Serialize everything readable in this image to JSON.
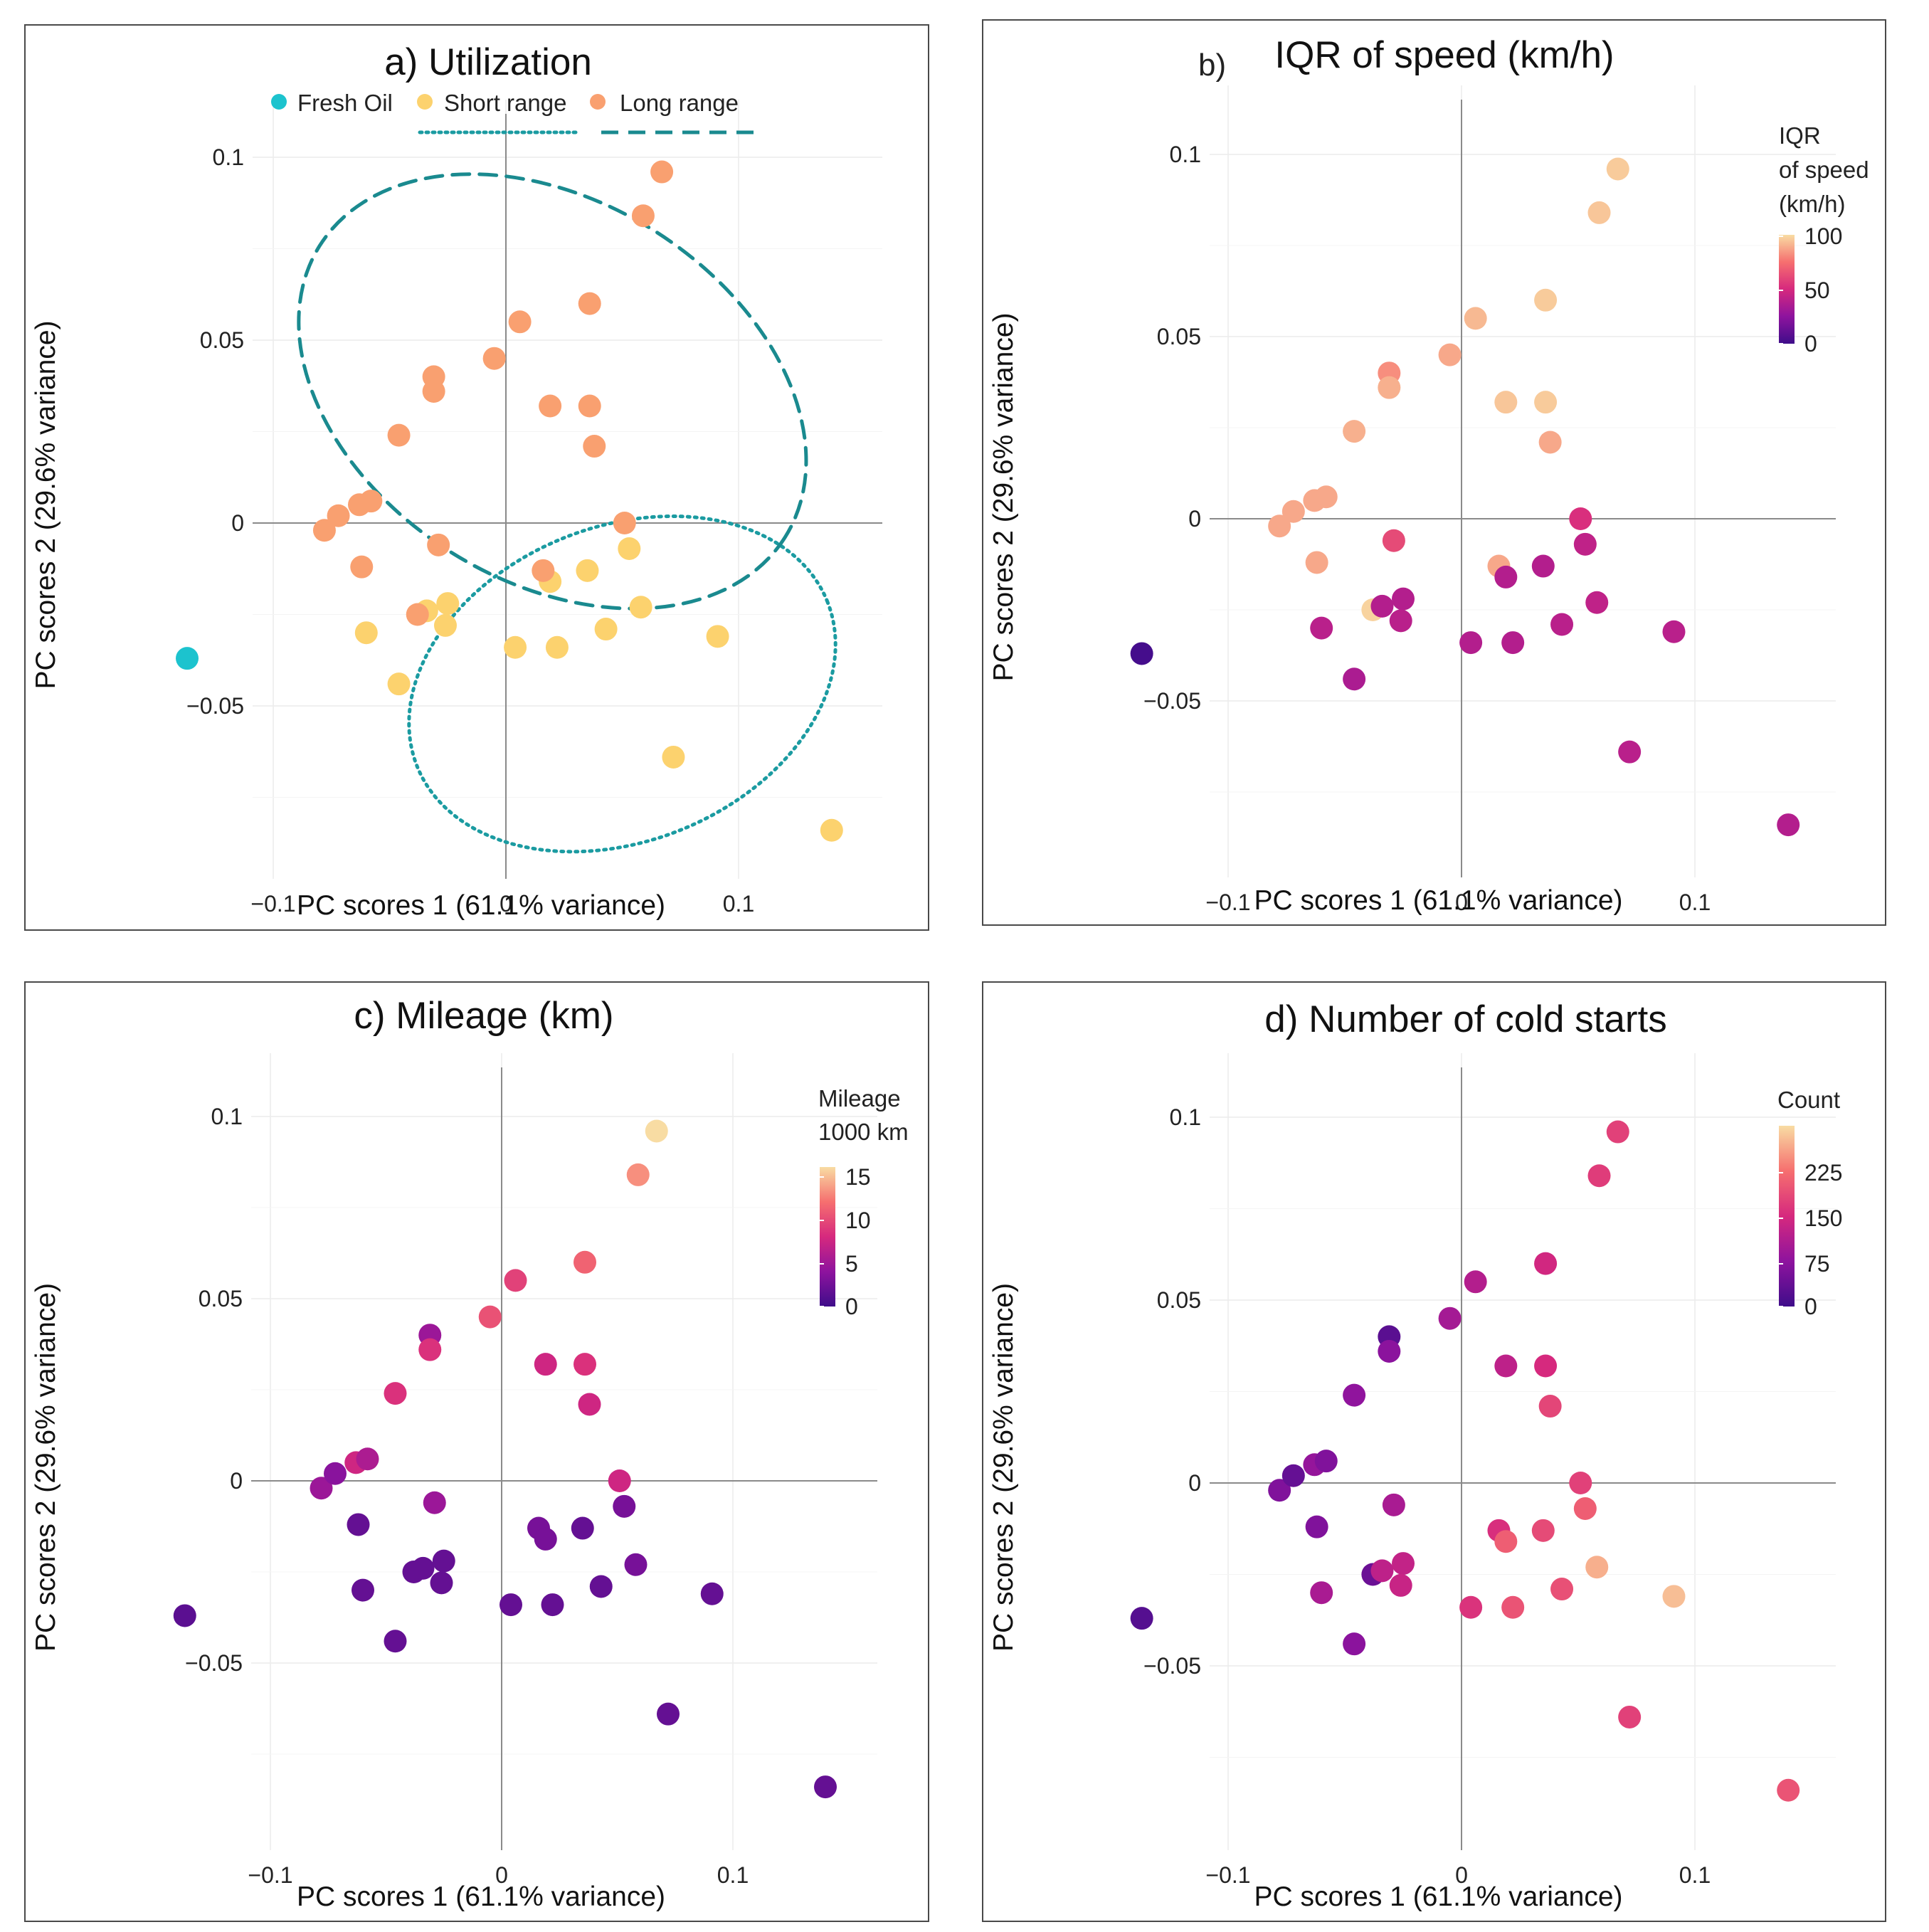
{
  "figure": {
    "axis_x_label": "PC scores 1 (61.1% variance)",
    "axis_y_label": "PC scores 2 (29.6% variance)",
    "x_ticks": [
      -0.1,
      0,
      0.1
    ],
    "x_tick_labels": [
      "−0.1",
      "0",
      "0.1"
    ],
    "y_ticks": [
      -0.05,
      0,
      0.05,
      0.1
    ],
    "y_tick_labels": [
      "−0.05",
      "0",
      "0.05",
      "0.1"
    ],
    "colors": {
      "fresh_oil": "#1CC3CE",
      "short_range": "#FCD26E",
      "long_range": "#F9A070",
      "ellipse": "#1A8A8F",
      "ellipse_short": "#1B9BA1",
      "grid": "#ECECEC",
      "axis_zero": "#8A8A8A",
      "frame": "#4A4A4A"
    },
    "panels": {
      "a": {
        "title": "a) Utilization",
        "legend": [
          {
            "label": "Fresh Oil",
            "color": "#1CC3CE"
          },
          {
            "label": "Short range",
            "color": "#FCD26E"
          },
          {
            "label": "Long range",
            "color": "#F9A070"
          }
        ]
      },
      "b": {
        "title_prefix": "b)",
        "title_main": "IQR of speed (km/h)",
        "colorbar_title": [
          "IQR",
          "of speed",
          "(km/h)"
        ],
        "colorbar_tick_labels": [
          "100",
          "50",
          "0"
        ]
      },
      "c": {
        "title": "c) Mileage (km)",
        "colorbar_title": [
          "Mileage",
          "1000 km"
        ],
        "colorbar_tick_labels": [
          "15",
          "10",
          "5",
          "0"
        ]
      },
      "d": {
        "title": "d) Number of cold starts",
        "colorbar_title": [
          "Count"
        ],
        "colorbar_tick_labels": [
          "225",
          "150",
          "75",
          "0"
        ]
      }
    }
  },
  "chart_data": [
    {
      "type": "scatter",
      "title": "a) Utilization",
      "xlabel": "PC scores 1 (61.1% variance)",
      "ylabel": "PC scores 2 (29.6% variance)",
      "xlim": [
        -0.16,
        0.163
      ],
      "ylim": [
        -0.1,
        0.11
      ],
      "series": [
        {
          "name": "Fresh Oil",
          "color": "#1CC3CE",
          "points": [
            [
              -0.137,
              -0.037
            ]
          ]
        },
        {
          "name": "Short range",
          "color": "#FCD26E",
          "points": [
            [
              -0.06,
              -0.03
            ],
            [
              -0.046,
              -0.044
            ],
            [
              -0.034,
              -0.024
            ],
            [
              -0.025,
              -0.022
            ],
            [
              -0.026,
              -0.028
            ],
            [
              0.004,
              -0.034
            ],
            [
              0.019,
              -0.016
            ],
            [
              0.022,
              -0.034
            ],
            [
              0.035,
              -0.013
            ],
            [
              0.043,
              -0.029
            ],
            [
              0.053,
              -0.007
            ],
            [
              0.058,
              -0.023
            ],
            [
              0.072,
              -0.064
            ],
            [
              0.091,
              -0.031
            ],
            [
              0.14,
              -0.084
            ]
          ]
        },
        {
          "name": "Long range",
          "color": "#F9A070",
          "points": [
            [
              -0.078,
              -0.002
            ],
            [
              -0.072,
              0.002
            ],
            [
              -0.063,
              0.005
            ],
            [
              -0.058,
              0.006
            ],
            [
              -0.062,
              -0.012
            ],
            [
              -0.046,
              0.024
            ],
            [
              -0.031,
              0.04
            ],
            [
              -0.031,
              0.036
            ],
            [
              -0.029,
              -0.006
            ],
            [
              -0.038,
              -0.025
            ],
            [
              -0.005,
              0.045
            ],
            [
              0.006,
              0.055
            ],
            [
              0.016,
              -0.013
            ],
            [
              0.019,
              0.032
            ],
            [
              0.036,
              0.06
            ],
            [
              0.036,
              0.032
            ],
            [
              0.038,
              0.021
            ],
            [
              0.051,
              0.0
            ],
            [
              0.059,
              0.084
            ],
            [
              0.067,
              0.096
            ]
          ]
        }
      ],
      "ellipses": [
        {
          "name": "Short range",
          "style": "dotted",
          "center": [
            0.05,
            -0.044
          ],
          "semi_axes": [
            0.095,
            0.043
          ],
          "angle_deg": -22
        },
        {
          "name": "Long range",
          "style": "dashed",
          "center": [
            0.02,
            0.036
          ],
          "semi_axes": [
            0.118,
            0.052
          ],
          "angle_deg": 32
        }
      ]
    },
    {
      "type": "scatter",
      "title": "b) IQR of speed (km/h)",
      "xlabel": "PC scores 1 (61.1% variance)",
      "ylabel": "PC scores 2 (29.6% variance)",
      "xlim": [
        -0.16,
        0.163
      ],
      "ylim": [
        -0.1,
        0.11
      ],
      "color_variable": "IQR of speed (km/h)",
      "color_range": [
        0,
        100
      ],
      "points": [
        {
          "x": -0.137,
          "y": -0.037,
          "value": 2
        },
        {
          "x": -0.078,
          "y": -0.002,
          "value": 88
        },
        {
          "x": -0.072,
          "y": 0.002,
          "value": 88
        },
        {
          "x": -0.063,
          "y": 0.005,
          "value": 88
        },
        {
          "x": -0.058,
          "y": 0.006,
          "value": 88
        },
        {
          "x": -0.062,
          "y": -0.012,
          "value": 88
        },
        {
          "x": -0.046,
          "y": 0.024,
          "value": 90
        },
        {
          "x": -0.031,
          "y": 0.04,
          "value": 82
        },
        {
          "x": -0.031,
          "y": 0.036,
          "value": 90
        },
        {
          "x": -0.029,
          "y": -0.006,
          "value": 62
        },
        {
          "x": -0.038,
          "y": -0.025,
          "value": 98
        },
        {
          "x": -0.005,
          "y": 0.045,
          "value": 88
        },
        {
          "x": 0.006,
          "y": 0.055,
          "value": 92
        },
        {
          "x": 0.016,
          "y": -0.013,
          "value": 88
        },
        {
          "x": 0.019,
          "y": 0.032,
          "value": 95
        },
        {
          "x": 0.036,
          "y": 0.06,
          "value": 96
        },
        {
          "x": 0.036,
          "y": 0.032,
          "value": 96
        },
        {
          "x": 0.038,
          "y": 0.021,
          "value": 88
        },
        {
          "x": 0.051,
          "y": 0.0,
          "value": 52
        },
        {
          "x": 0.059,
          "y": 0.084,
          "value": 95
        },
        {
          "x": 0.067,
          "y": 0.096,
          "value": 96
        },
        {
          "x": -0.06,
          "y": -0.03,
          "value": 40
        },
        {
          "x": -0.046,
          "y": -0.044,
          "value": 35
        },
        {
          "x": -0.034,
          "y": -0.024,
          "value": 38
        },
        {
          "x": -0.025,
          "y": -0.022,
          "value": 38
        },
        {
          "x": -0.026,
          "y": -0.028,
          "value": 40
        },
        {
          "x": 0.004,
          "y": -0.034,
          "value": 38
        },
        {
          "x": 0.019,
          "y": -0.016,
          "value": 38
        },
        {
          "x": 0.022,
          "y": -0.034,
          "value": 38
        },
        {
          "x": 0.035,
          "y": -0.013,
          "value": 38
        },
        {
          "x": 0.043,
          "y": -0.029,
          "value": 40
        },
        {
          "x": 0.053,
          "y": -0.007,
          "value": 42
        },
        {
          "x": 0.058,
          "y": -0.023,
          "value": 42
        },
        {
          "x": 0.072,
          "y": -0.064,
          "value": 40
        },
        {
          "x": 0.091,
          "y": -0.031,
          "value": 40
        },
        {
          "x": 0.14,
          "y": -0.084,
          "value": 38
        }
      ]
    },
    {
      "type": "scatter",
      "title": "c) Mileage (km)",
      "xlabel": "PC scores 1 (61.1% variance)",
      "ylabel": "PC scores 2 (29.6% variance)",
      "xlim": [
        -0.16,
        0.163
      ],
      "ylim": [
        -0.1,
        0.11
      ],
      "color_variable": "Mileage 1000 km",
      "color_range": [
        0,
        17
      ],
      "points": [
        {
          "x": -0.137,
          "y": -0.037,
          "value": 1.5
        },
        {
          "x": -0.078,
          "y": -0.002,
          "value": 5
        },
        {
          "x": -0.072,
          "y": 0.002,
          "value": 4
        },
        {
          "x": -0.063,
          "y": 0.005,
          "value": 8
        },
        {
          "x": -0.058,
          "y": 0.006,
          "value": 6
        },
        {
          "x": -0.062,
          "y": -0.012,
          "value": 2
        },
        {
          "x": -0.046,
          "y": 0.024,
          "value": 9
        },
        {
          "x": -0.031,
          "y": 0.04,
          "value": 5
        },
        {
          "x": -0.031,
          "y": 0.036,
          "value": 9
        },
        {
          "x": -0.029,
          "y": -0.006,
          "value": 5
        },
        {
          "x": -0.038,
          "y": -0.025,
          "value": 2
        },
        {
          "x": -0.005,
          "y": 0.045,
          "value": 11
        },
        {
          "x": 0.006,
          "y": 0.055,
          "value": 10
        },
        {
          "x": 0.016,
          "y": -0.013,
          "value": 3
        },
        {
          "x": 0.019,
          "y": 0.032,
          "value": 8
        },
        {
          "x": 0.036,
          "y": 0.06,
          "value": 12
        },
        {
          "x": 0.036,
          "y": 0.032,
          "value": 9
        },
        {
          "x": 0.038,
          "y": 0.021,
          "value": 8
        },
        {
          "x": 0.051,
          "y": 0.0,
          "value": 8
        },
        {
          "x": 0.059,
          "y": 0.084,
          "value": 14
        },
        {
          "x": 0.067,
          "y": 0.096,
          "value": 17
        },
        {
          "x": -0.06,
          "y": -0.03,
          "value": 2
        },
        {
          "x": -0.046,
          "y": -0.044,
          "value": 2
        },
        {
          "x": -0.034,
          "y": -0.024,
          "value": 2
        },
        {
          "x": -0.025,
          "y": -0.022,
          "value": 2
        },
        {
          "x": -0.026,
          "y": -0.028,
          "value": 2
        },
        {
          "x": 0.004,
          "y": -0.034,
          "value": 2
        },
        {
          "x": 0.019,
          "y": -0.016,
          "value": 3
        },
        {
          "x": 0.022,
          "y": -0.034,
          "value": 2
        },
        {
          "x": 0.035,
          "y": -0.013,
          "value": 2
        },
        {
          "x": 0.043,
          "y": -0.029,
          "value": 2
        },
        {
          "x": 0.053,
          "y": -0.007,
          "value": 3
        },
        {
          "x": 0.058,
          "y": -0.023,
          "value": 3
        },
        {
          "x": 0.072,
          "y": -0.064,
          "value": 2
        },
        {
          "x": 0.091,
          "y": -0.031,
          "value": 2
        },
        {
          "x": 0.14,
          "y": -0.084,
          "value": 2
        }
      ]
    },
    {
      "type": "scatter",
      "title": "d) Number of cold starts",
      "xlabel": "PC scores 1 (61.1% variance)",
      "ylabel": "PC scores 2 (29.6% variance)",
      "xlim": [
        -0.16,
        0.163
      ],
      "ylim": [
        -0.1,
        0.11
      ],
      "color_variable": "Count",
      "color_range": [
        0,
        290
      ],
      "points": [
        {
          "x": -0.137,
          "y": -0.037,
          "value": 20
        },
        {
          "x": -0.078,
          "y": -0.002,
          "value": 60
        },
        {
          "x": -0.072,
          "y": 0.002,
          "value": 35
        },
        {
          "x": -0.063,
          "y": 0.005,
          "value": 80
        },
        {
          "x": -0.058,
          "y": 0.006,
          "value": 60
        },
        {
          "x": -0.062,
          "y": -0.012,
          "value": 60
        },
        {
          "x": -0.046,
          "y": 0.024,
          "value": 75
        },
        {
          "x": -0.031,
          "y": 0.04,
          "value": 25
        },
        {
          "x": -0.031,
          "y": 0.036,
          "value": 70
        },
        {
          "x": -0.029,
          "y": -0.006,
          "value": 100
        },
        {
          "x": -0.038,
          "y": -0.025,
          "value": 40
        },
        {
          "x": -0.005,
          "y": 0.045,
          "value": 95
        },
        {
          "x": 0.006,
          "y": 0.055,
          "value": 110
        },
        {
          "x": 0.016,
          "y": -0.013,
          "value": 150
        },
        {
          "x": 0.019,
          "y": 0.032,
          "value": 120
        },
        {
          "x": 0.036,
          "y": 0.06,
          "value": 140
        },
        {
          "x": 0.036,
          "y": 0.032,
          "value": 145
        },
        {
          "x": 0.038,
          "y": 0.021,
          "value": 175
        },
        {
          "x": 0.051,
          "y": 0.0,
          "value": 170
        },
        {
          "x": 0.059,
          "y": 0.084,
          "value": 165
        },
        {
          "x": 0.067,
          "y": 0.096,
          "value": 170
        },
        {
          "x": -0.06,
          "y": -0.03,
          "value": 100
        },
        {
          "x": -0.046,
          "y": -0.044,
          "value": 70
        },
        {
          "x": -0.034,
          "y": -0.024,
          "value": 120
        },
        {
          "x": -0.025,
          "y": -0.022,
          "value": 125
        },
        {
          "x": -0.026,
          "y": -0.028,
          "value": 130
        },
        {
          "x": 0.004,
          "y": -0.034,
          "value": 155
        },
        {
          "x": 0.019,
          "y": -0.016,
          "value": 200
        },
        {
          "x": 0.022,
          "y": -0.034,
          "value": 190
        },
        {
          "x": 0.035,
          "y": -0.013,
          "value": 180
        },
        {
          "x": 0.043,
          "y": -0.029,
          "value": 185
        },
        {
          "x": 0.053,
          "y": -0.007,
          "value": 200
        },
        {
          "x": 0.058,
          "y": -0.023,
          "value": 260
        },
        {
          "x": 0.072,
          "y": -0.064,
          "value": 170
        },
        {
          "x": 0.091,
          "y": -0.031,
          "value": 270
        },
        {
          "x": 0.14,
          "y": -0.084,
          "value": 190
        }
      ]
    }
  ]
}
